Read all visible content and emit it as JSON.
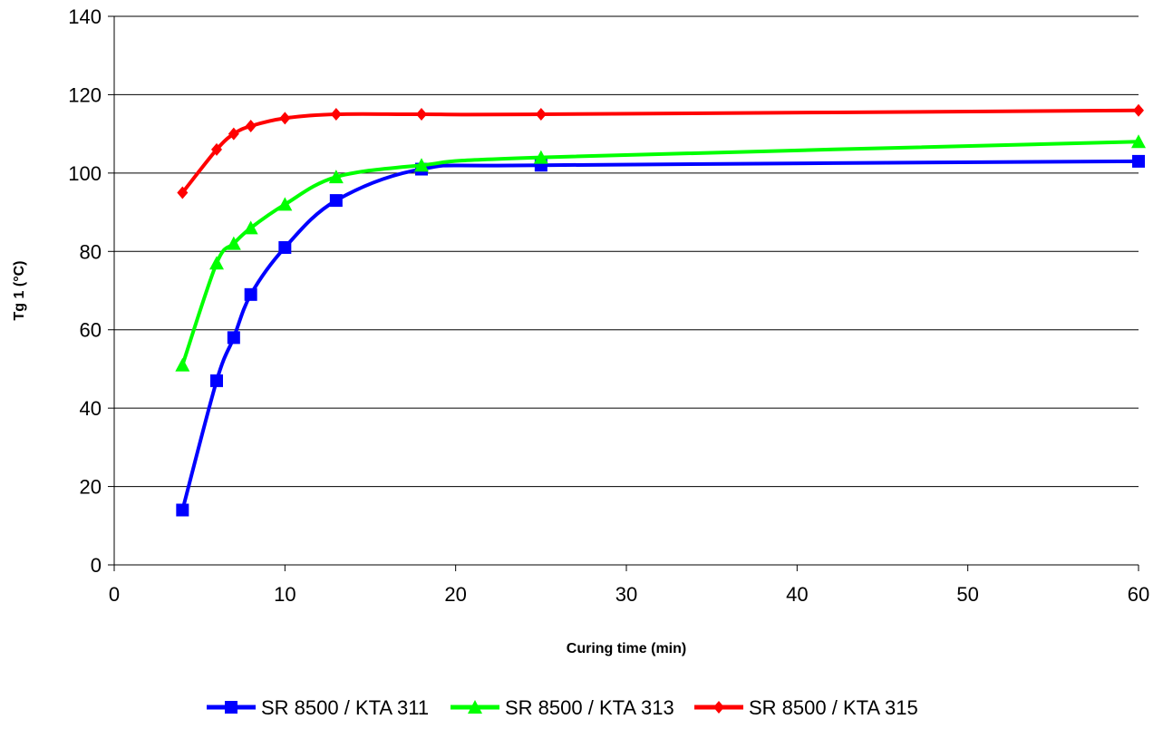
{
  "chart_data": {
    "type": "line",
    "title": "",
    "xlabel": "Curing time (min)",
    "ylabel": "Tg 1 (°C)",
    "xlim": [
      0,
      60
    ],
    "ylim": [
      0,
      140
    ],
    "xticks": [
      "0",
      "10",
      "20",
      "30",
      "40",
      "50",
      "60"
    ],
    "yticks": [
      "0",
      "20",
      "40",
      "60",
      "80",
      "100",
      "120",
      "140"
    ],
    "grid": "horizontal",
    "legend_position": "bottom",
    "series": [
      {
        "name": "SR 8500 / KTA 311",
        "color": "#0000ff",
        "marker": "square",
        "x": [
          4,
          6,
          7,
          8,
          10,
          13,
          18,
          25,
          60
        ],
        "y": [
          14,
          47,
          58,
          69,
          81,
          93,
          101,
          102,
          103
        ]
      },
      {
        "name": "SR 8500 / KTA 313",
        "color": "#00ff00",
        "marker": "triangle",
        "x": [
          4,
          6,
          7,
          8,
          10,
          13,
          18,
          25,
          60
        ],
        "y": [
          51,
          77,
          82,
          86,
          92,
          99,
          102,
          104,
          108
        ]
      },
      {
        "name": "SR 8500 / KTA 315",
        "color": "#ff0000",
        "marker": "diamond",
        "x": [
          4,
          6,
          7,
          8,
          10,
          13,
          18,
          25,
          60
        ],
        "y": [
          95,
          106,
          110,
          112,
          114,
          115,
          115,
          115,
          116
        ]
      }
    ]
  }
}
